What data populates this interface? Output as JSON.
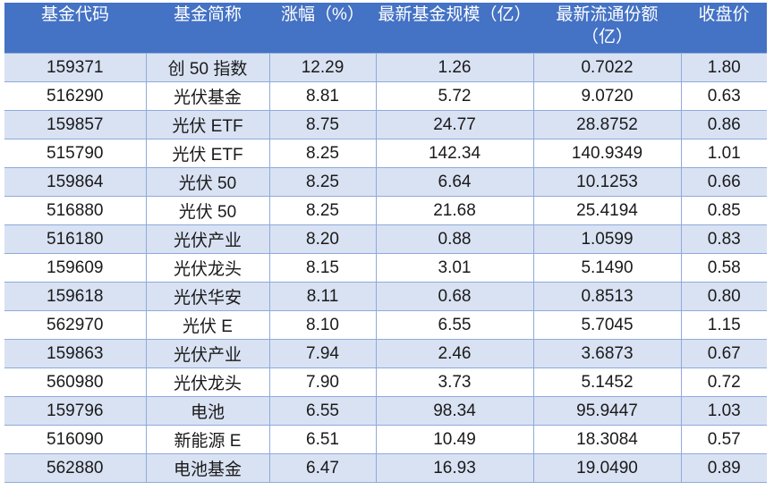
{
  "table": {
    "colors": {
      "header_bg": "#4472C4",
      "header_fg": "#FFFFFF",
      "band_row_bg": "#D9E2F3",
      "grid_line": "#8EAADB"
    },
    "columns": [
      "基金代码",
      "基金简称",
      "涨幅（%）",
      "最新基金规模（亿）",
      "最新流通份额（亿）",
      "收盘价"
    ],
    "rows": [
      [
        "159371",
        "创 50 指数",
        "12.29",
        "1.26",
        "0.7022",
        "1.80"
      ],
      [
        "516290",
        "光伏基金",
        "8.81",
        "5.72",
        "9.0720",
        "0.63"
      ],
      [
        "159857",
        "光伏 ETF",
        "8.75",
        "24.77",
        "28.8752",
        "0.86"
      ],
      [
        "515790",
        "光伏 ETF",
        "8.25",
        "142.34",
        "140.9349",
        "1.01"
      ],
      [
        "159864",
        "光伏 50",
        "8.25",
        "6.64",
        "10.1253",
        "0.66"
      ],
      [
        "516880",
        "光伏 50",
        "8.25",
        "21.68",
        "25.4194",
        "0.85"
      ],
      [
        "516180",
        "光伏产业",
        "8.20",
        "0.88",
        "1.0599",
        "0.83"
      ],
      [
        "159609",
        "光伏龙头",
        "8.15",
        "3.01",
        "5.1490",
        "0.58"
      ],
      [
        "159618",
        "光伏华安",
        "8.11",
        "0.68",
        "0.8513",
        "0.80"
      ],
      [
        "562970",
        "光伏 E",
        "8.10",
        "6.55",
        "5.7045",
        "1.15"
      ],
      [
        "159863",
        "光伏产业",
        "7.94",
        "2.46",
        "3.6873",
        "0.67"
      ],
      [
        "560980",
        "光伏龙头",
        "7.90",
        "3.73",
        "5.1452",
        "0.72"
      ],
      [
        "159796",
        "电池",
        "6.55",
        "98.34",
        "95.9447",
        "1.03"
      ],
      [
        "516090",
        "新能源 E",
        "6.51",
        "10.49",
        "18.3084",
        "0.57"
      ],
      [
        "562880",
        "电池基金",
        "6.47",
        "16.93",
        "19.0490",
        "0.89"
      ]
    ]
  }
}
